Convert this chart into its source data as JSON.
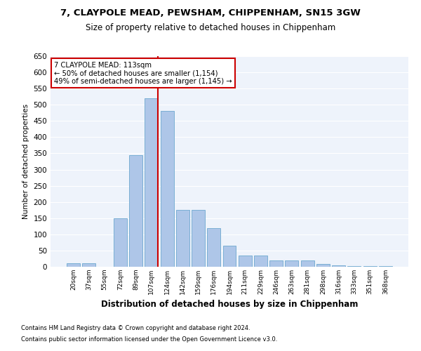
{
  "title1": "7, CLAYPOLE MEAD, PEWSHAM, CHIPPENHAM, SN15 3GW",
  "title2": "Size of property relative to detached houses in Chippenham",
  "xlabel": "Distribution of detached houses by size in Chippenham",
  "ylabel": "Number of detached properties",
  "categories": [
    "20sqm",
    "37sqm",
    "55sqm",
    "72sqm",
    "89sqm",
    "107sqm",
    "124sqm",
    "142sqm",
    "159sqm",
    "176sqm",
    "194sqm",
    "211sqm",
    "229sqm",
    "246sqm",
    "263sqm",
    "281sqm",
    "298sqm",
    "316sqm",
    "333sqm",
    "351sqm",
    "368sqm"
  ],
  "values": [
    10,
    10,
    0,
    150,
    345,
    520,
    480,
    175,
    175,
    120,
    65,
    35,
    35,
    20,
    20,
    20,
    8,
    5,
    3,
    3,
    3
  ],
  "bar_color": "#aec6e8",
  "bar_edge_color": "#7aafd4",
  "bg_color": "#eef3fb",
  "grid_color": "#ffffff",
  "vline_color": "#cc0000",
  "annotation_text": "7 CLAYPOLE MEAD: 113sqm\n← 50% of detached houses are smaller (1,154)\n49% of semi-detached houses are larger (1,145) →",
  "annotation_box_color": "#ffffff",
  "annotation_box_edge": "#cc0000",
  "ylim": [
    0,
    650
  ],
  "yticks": [
    0,
    50,
    100,
    150,
    200,
    250,
    300,
    350,
    400,
    450,
    500,
    550,
    600,
    650
  ],
  "footnote1": "Contains HM Land Registry data © Crown copyright and database right 2024.",
  "footnote2": "Contains public sector information licensed under the Open Government Licence v3.0."
}
